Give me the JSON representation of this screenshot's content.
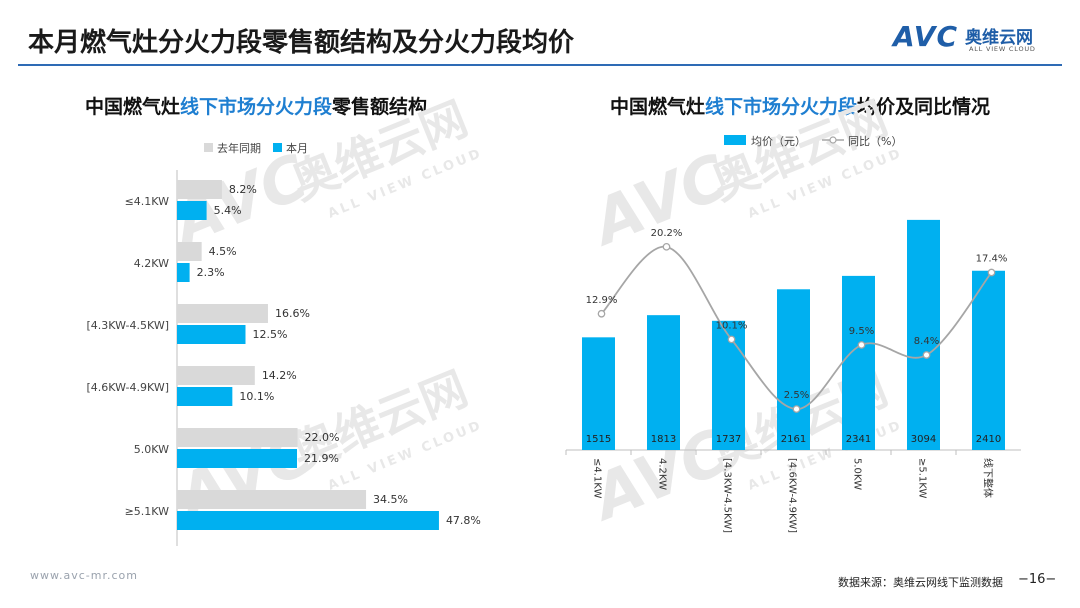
{
  "header": {
    "title": "本月燃气灶分火力段零售额结构及分火力段均价",
    "logo_mark": "AVC",
    "logo_cn": "奥维云网",
    "logo_en": "ALL VIEW CLOUD"
  },
  "watermark": {
    "cn": "奥维云网",
    "en": "ALL VIEW CLOUD",
    "mark": "AVC"
  },
  "left_panel": {
    "title_prefix": "中国燃气灶",
    "title_highlight": "线下市场分火力段",
    "title_suffix": "零售额结构"
  },
  "right_panel": {
    "title_prefix": "中国燃气灶",
    "title_highlight": "线下市场分火力段",
    "title_suffix": "均价及同比情况"
  },
  "footer": {
    "url": "www.avc-mr.com",
    "source": "数据来源：奥维云网线下监测数据",
    "page": "−16−"
  },
  "chart_data": [
    {
      "type": "bar",
      "orientation": "horizontal",
      "title": "中国燃气灶线下市场分火力段零售额结构",
      "categories": [
        "≤4.1KW",
        "4.2KW",
        "[4.3KW-4.5KW]",
        "[4.6KW-4.9KW]",
        "5.0KW",
        "≥5.1KW"
      ],
      "series": [
        {
          "name": "去年同期",
          "color": "#d9d9d9",
          "values": [
            8.2,
            4.5,
            16.6,
            14.2,
            22.0,
            34.5
          ],
          "labels": [
            "8.2%",
            "4.5%",
            "16.6%",
            "14.2%",
            "22.0%",
            "34.5%"
          ]
        },
        {
          "name": "本月",
          "color": "#00b0f0",
          "values": [
            5.4,
            2.3,
            12.5,
            10.1,
            21.9,
            47.8
          ],
          "labels": [
            "5.4%",
            "2.3%",
            "12.5%",
            "10.1%",
            "21.9%",
            "47.8%"
          ]
        }
      ],
      "unit": "%",
      "xlim": [
        0,
        50
      ],
      "legend": "top"
    },
    {
      "type": "bar+line",
      "title": "中国燃气灶线下市场分火力段均价及同比情况",
      "categories": [
        "≤4.1KW",
        "4.2KW",
        "[4.3KW-4.5KW]",
        "[4.6KW-4.9KW]",
        "5.0KW",
        "≥5.1KW",
        "线下整体"
      ],
      "bar_series": {
        "name": "均价（元）",
        "color": "#00b0f0",
        "values": [
          1515,
          1813,
          1737,
          2161,
          2341,
          3094,
          2410
        ]
      },
      "line_series": {
        "name": "同比（%）",
        "color": "#a6a6a6",
        "values": [
          12.9,
          20.2,
          10.1,
          2.5,
          9.5,
          8.4,
          17.4
        ],
        "labels": [
          "12.9%",
          "20.2%",
          "10.1%",
          "2.5%",
          "9.5%",
          "8.4%",
          "17.4%"
        ]
      },
      "bar_ylim": [
        0,
        3200
      ],
      "line_ylim": [
        0,
        24
      ],
      "legend": "top"
    }
  ]
}
